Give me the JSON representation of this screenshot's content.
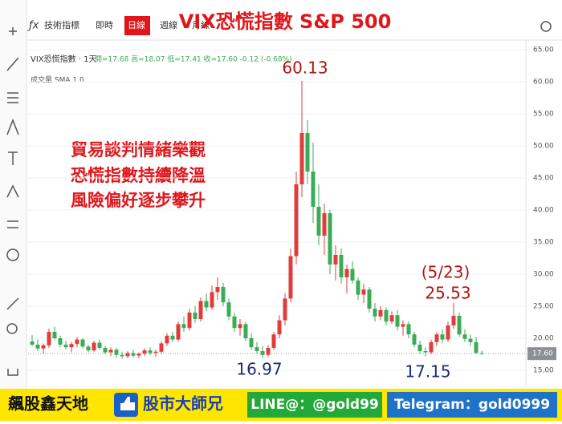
{
  "toolbar": {
    "items": [
      "技術指標",
      "即時",
      "日線",
      "週線",
      "月線"
    ],
    "active": "日線"
  },
  "legend": {
    "symbol": "VIX恐慌指數 · 1天",
    "ohlc": "開=17.68 高=18.07 低=17.41 收=17.60 -0.12 (-0.68%)",
    "volume": "成交量 SMA 1 0"
  },
  "commentary": [
    "貿易談判情緒樂觀",
    "恐慌指數持續降溫",
    "風險偏好逐步攀升"
  ],
  "annotations": [
    {
      "text": "60.13"
    },
    {
      "text": "16.97"
    },
    {
      "text": "17.15"
    },
    {
      "text": "(5/23)"
    },
    {
      "text": "25.53"
    }
  ],
  "footer": {
    "brand": "飆股鑫天地",
    "name": "股市大師兄",
    "line": "LINE@：@gold99",
    "telegram": "Telegram：gold0999"
  },
  "chart_data": {
    "type": "candlestick",
    "title": "VIX恐慌指數 S&P 500",
    "up_color": "#e03c3c",
    "down_color": "#3bab57",
    "open": [
      19.5,
      19.0,
      18.4,
      18.9,
      21.0,
      20.0,
      19.0,
      18.6,
      19.1,
      19.8,
      18.7,
      18.1,
      19.3,
      18.5,
      17.8,
      18.2,
      17.4,
      17.2,
      17.7,
      17.3,
      17.6,
      18.1,
      17.7,
      17.9,
      19.2,
      20.4,
      19.8,
      22.2,
      21.6,
      24.0,
      23.0,
      25.8,
      24.8,
      27.2,
      28.0,
      25.6,
      23.4,
      21.6,
      22.2,
      20.0,
      18.6,
      18.0,
      17.4,
      18.5,
      20.6,
      22.8,
      26.2,
      32.8,
      44.0,
      52.0,
      46.0,
      40.5,
      36.0,
      39.5,
      31.5,
      33.0,
      29.5,
      30.8,
      29.0,
      26.8,
      27.6,
      24.6,
      23.4,
      24.4,
      22.6,
      23.6,
      21.8,
      22.2,
      20.6,
      19.0,
      18.0,
      17.8,
      19.4,
      20.6,
      19.8,
      22.0,
      23.5,
      20.6,
      19.9,
      19.4,
      17.68
    ],
    "high": [
      20.5,
      19.8,
      19.2,
      21.5,
      21.8,
      20.4,
      19.6,
      19.4,
      20.2,
      20.0,
      19.0,
      19.6,
      19.8,
      18.8,
      18.6,
      18.5,
      17.9,
      18.0,
      18.2,
      17.8,
      18.4,
      18.6,
      18.2,
      19.5,
      20.8,
      21.0,
      22.6,
      23.4,
      24.6,
      25.0,
      26.4,
      27.0,
      28.2,
      29.5,
      28.6,
      26.2,
      24.0,
      23.0,
      22.6,
      20.8,
      19.4,
      18.8,
      18.9,
      21.0,
      23.6,
      27.0,
      34.0,
      46.0,
      60.13,
      54.0,
      50.5,
      44.0,
      41.0,
      40.0,
      34.5,
      34.0,
      31.5,
      32.0,
      29.5,
      28.5,
      28.0,
      25.5,
      25.0,
      24.8,
      24.2,
      24.4,
      22.8,
      22.6,
      21.0,
      19.6,
      18.6,
      19.8,
      21.0,
      21.4,
      22.6,
      25.53,
      24.0,
      21.4,
      20.6,
      20.2,
      18.07
    ],
    "low": [
      18.8,
      18.0,
      17.6,
      18.5,
      19.8,
      18.6,
      18.2,
      17.8,
      18.6,
      18.4,
      17.8,
      17.9,
      18.2,
      17.5,
      17.2,
      17.0,
      16.8,
      16.9,
      17.0,
      16.9,
      17.2,
      17.4,
      17.1,
      17.6,
      18.8,
      19.4,
      19.5,
      21.0,
      21.2,
      22.4,
      22.6,
      24.2,
      24.4,
      26.0,
      25.0,
      22.8,
      21.0,
      20.4,
      19.6,
      18.2,
      17.6,
      16.97,
      17.1,
      18.2,
      20.0,
      22.0,
      25.6,
      31.5,
      42.0,
      44.0,
      38.0,
      34.5,
      33.0,
      30.0,
      29.0,
      28.5,
      27.0,
      28.5,
      26.0,
      25.5,
      24.0,
      22.6,
      22.8,
      22.0,
      22.2,
      21.2,
      20.4,
      20.0,
      18.6,
      17.6,
      17.15,
      17.5,
      18.8,
      19.2,
      19.4,
      21.5,
      20.2,
      19.4,
      18.8,
      17.5,
      17.41
    ],
    "close": [
      19.0,
      18.4,
      18.9,
      21.0,
      20.0,
      19.0,
      18.6,
      19.1,
      19.8,
      18.7,
      18.1,
      19.3,
      18.5,
      17.8,
      18.2,
      17.4,
      17.2,
      17.7,
      17.3,
      17.6,
      18.1,
      17.7,
      17.9,
      19.2,
      20.4,
      19.8,
      22.2,
      21.6,
      24.0,
      23.0,
      25.8,
      24.8,
      27.2,
      28.0,
      25.6,
      23.4,
      21.6,
      22.2,
      20.0,
      18.6,
      18.0,
      17.4,
      18.5,
      20.6,
      22.8,
      26.2,
      32.8,
      44.0,
      52.0,
      46.0,
      40.5,
      36.0,
      39.5,
      31.5,
      33.0,
      29.5,
      30.8,
      29.0,
      26.8,
      27.6,
      24.6,
      23.4,
      24.4,
      22.6,
      23.6,
      21.8,
      22.2,
      20.6,
      19.0,
      18.0,
      17.8,
      19.4,
      20.6,
      19.8,
      22.0,
      23.5,
      20.6,
      19.9,
      19.4,
      17.72,
      17.6
    ],
    "last_price_label": "17.60",
    "ylim": [
      14,
      65.5
    ],
    "yticks": [
      {
        "value": 15,
        "label": "15.00"
      },
      {
        "value": 20,
        "label": "20.00"
      },
      {
        "value": 25,
        "label": "25.00"
      },
      {
        "value": 30,
        "label": "30.00"
      },
      {
        "value": 35,
        "label": "35.00"
      },
      {
        "value": 40,
        "label": "40.00"
      },
      {
        "value": 45,
        "label": "45.00"
      },
      {
        "value": 50,
        "label": "50.00"
      },
      {
        "value": 55,
        "label": "55.00"
      },
      {
        "value": 60,
        "label": "60.00"
      },
      {
        "value": 65,
        "label": "65.00"
      }
    ],
    "grid": true
  }
}
